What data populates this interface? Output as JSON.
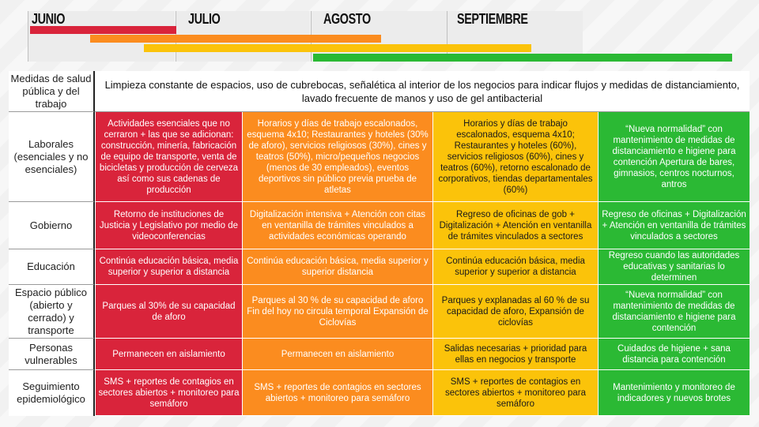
{
  "colors": {
    "red": "#d9243b",
    "orange": "#fb8c1f",
    "yellow": "#fbc30a",
    "green": "#2bb934"
  },
  "timeline": {
    "months": [
      "JUNIO",
      "JULIO",
      "AGOSTO",
      "SEPTIEMBRE"
    ]
  },
  "table": {
    "rows": [
      {
        "label": "Medidas de salud pública y del trabajo",
        "span": "Limpieza constante de espacios, uso de cubrebocas, señalética al interior de los negocios para indicar flujos y medidas de distanciamiento, lavado frecuente de manos y uso de gel antibacterial"
      },
      {
        "label": "Laborales (esenciales y no esenciales)",
        "cells": [
          "Actividades esenciales que no cerraron + las que se adicionan: construcción, minería, fabricación de equipo de transporte, venta de bicicletas y producción de cerveza así como sus cadenas de producción",
          "Horarios y días de trabajo escalonados, esquema 4x10; Restaurantes y hoteles (30% de aforo), servicios religiosos (30%), cines y teatros (50%), micro/pequeños negocios (menos de 30 empleados), eventos deportivos sin público previa prueba de atletas",
          "Horarios y días de trabajo escalonados, esquema 4x10; Restaurantes y hoteles (60%), servicios religiosos (60%), cines y teatros (60%), retorno escalonado de corporativos, tiendas departamentales (60%)",
          "“Nueva normalidad” con mantenimiento de medidas de distanciamiento e higiene para contención Apertura de bares, gimnasios, centros nocturnos, antros"
        ]
      },
      {
        "label": "Gobierno",
        "cells": [
          "Retorno de instituciones de Justicia y Legislativo por medio de videoconferencias",
          "Digitalización intensiva + Atención con citas en ventanilla de trámites vinculados a actividades económicas operando",
          "Regreso de oficinas de gob + Digitalización + Atención en ventanilla de trámites vinculados a sectores",
          "Regreso de oficinas + Digitalización + Atención en ventanilla de trámites vinculados a sectores"
        ]
      },
      {
        "label": "Educación",
        "cells": [
          "Continúa educación básica, media superior y superior  a distancia",
          "Continúa educación básica, media superior y superior distancia",
          "Continúa educación básica, media superior y superior a distancia",
          "Regreso cuando las autoridades educativas y sanitarias lo determinen"
        ]
      },
      {
        "label": "Espacio público (abierto y cerrado) y transporte",
        "cells": [
          "Parques al 30% de su capacidad de aforo",
          "Parques al 30 % de su capacidad de aforo Fin del hoy no circula temporal Expansión de Ciclovías",
          "Parques y explanadas al 60 % de su capacidad de aforo, Expansión de ciclovías",
          "“Nueva normalidad” con mantenimiento de medidas de distanciamiento e higiene para contención"
        ]
      },
      {
        "label": "Personas vulnerables",
        "cells": [
          "Permanecen en aislamiento",
          "Permanecen en aislamiento",
          "Salidas necesarias + prioridad para ellas en negocios y transporte",
          "Cuidados de higiene + sana distancia para contención"
        ]
      },
      {
        "label": "Seguimiento epidemiológico",
        "cells": [
          "SMS + reportes de contagios en sectores abiertos + monitoreo para semáforo",
          "SMS + reportes de contagios en sectores abiertos + monitoreo para semáforo",
          "SMS + reportes de contagios en sectores abiertos + monitoreo para semáforo",
          "Mantenimiento y monitoreo de indicadores y nuevos brotes"
        ]
      }
    ]
  }
}
